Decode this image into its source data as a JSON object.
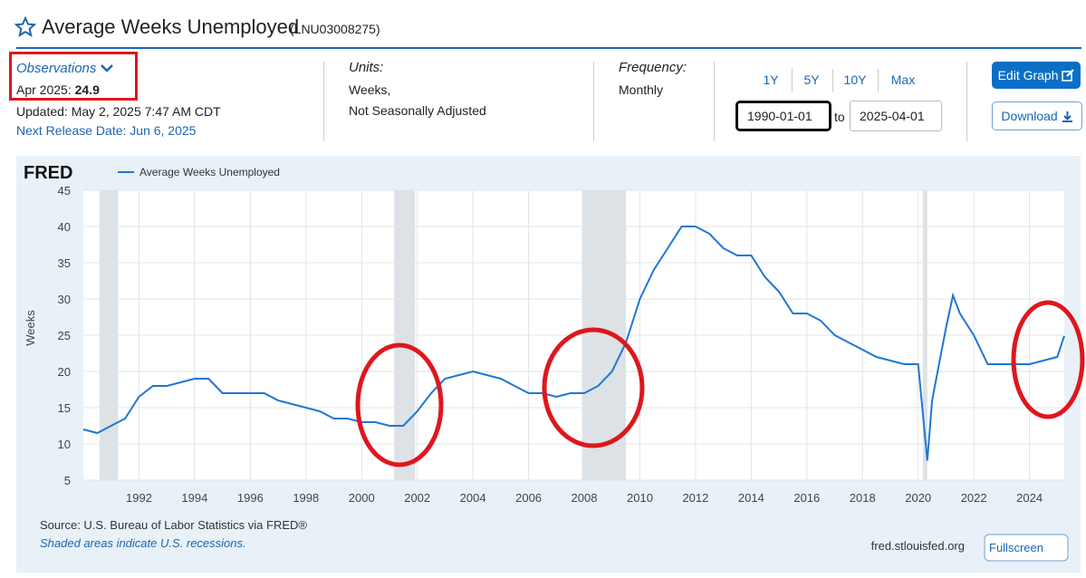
{
  "header": {
    "title": "Average Weeks Unemployed",
    "series_id": "(LNU03008275)"
  },
  "observations": {
    "label": "Observations",
    "date": "Apr 2025:",
    "value": "24.9",
    "updated": "Updated: May 2, 2025 7:47 AM CDT",
    "next_release": "Next Release Date: Jun 6, 2025"
  },
  "units": {
    "label": "Units:",
    "line1": "Weeks,",
    "line2": "Not Seasonally Adjusted"
  },
  "frequency": {
    "label": "Frequency:",
    "value": "Monthly"
  },
  "ranges": [
    "1Y",
    "5Y",
    "10Y",
    "Max"
  ],
  "date_range": {
    "start": "1990-01-01",
    "to": "to",
    "end": "2025-04-01"
  },
  "buttons": {
    "edit": "Edit Graph",
    "download": "Download",
    "fullscreen": "Fullscreen"
  },
  "chart_data": {
    "type": "line",
    "brand": "FRED",
    "ylabel": "Weeks",
    "source": "Source: U.S. Bureau of Labor Statistics via FRED®",
    "note": "Shaded areas indicate U.S. recessions.",
    "site": "fred.stlouisfed.org",
    "xlim": [
      1990,
      2025.25
    ],
    "xticks": [
      1992,
      1994,
      1996,
      1998,
      2000,
      2002,
      2004,
      2006,
      2008,
      2010,
      2012,
      2014,
      2016,
      2018,
      2020,
      2022,
      2024
    ],
    "ylim": [
      5,
      45
    ],
    "yticks": [
      5,
      10,
      15,
      20,
      25,
      30,
      35,
      40,
      45
    ],
    "grid": true,
    "recessions": [
      [
        1990.58,
        1991.25
      ],
      [
        2001.17,
        2001.92
      ],
      [
        2007.92,
        2009.5
      ],
      [
        2020.17,
        2020.33
      ]
    ],
    "x": [
      1990,
      1990.5,
      1991,
      1991.5,
      1992,
      1992.5,
      1993,
      1993.5,
      1994,
      1994.5,
      1995,
      1995.5,
      1996,
      1996.5,
      1997,
      1997.5,
      1998,
      1998.5,
      1999,
      1999.5,
      2000,
      2000.5,
      2001,
      2001.5,
      2002,
      2002.5,
      2003,
      2003.5,
      2004,
      2004.5,
      2005,
      2005.5,
      2006,
      2006.5,
      2007,
      2007.5,
      2008,
      2008.5,
      2009,
      2009.5,
      2010,
      2010.5,
      2011,
      2011.5,
      2012,
      2012.5,
      2013,
      2013.5,
      2014,
      2014.5,
      2015,
      2015.5,
      2016,
      2016.5,
      2017,
      2017.5,
      2018,
      2018.5,
      2019,
      2019.5,
      2020,
      2020.33,
      2020.5,
      2021,
      2021.25,
      2021.5,
      2022,
      2022.5,
      2023,
      2023.5,
      2024,
      2024.5,
      2025,
      2025.25
    ],
    "series": [
      {
        "name": "Average Weeks Unemployed",
        "color": "#1f77d4",
        "values": [
          12,
          11.5,
          12.5,
          13.5,
          16.5,
          18,
          18,
          18.5,
          19,
          19,
          17,
          17,
          17,
          17,
          16,
          15.5,
          15,
          14.5,
          13.5,
          13.5,
          13,
          13,
          12.5,
          12.5,
          14.5,
          17,
          19,
          19.5,
          20,
          19.5,
          19,
          18,
          17,
          17,
          16.5,
          17,
          17,
          18,
          20,
          24,
          30,
          34,
          37,
          40,
          40,
          39,
          37,
          36,
          36,
          33,
          31,
          28,
          28,
          27,
          25,
          24,
          23,
          22,
          21.5,
          21,
          21,
          7.7,
          16,
          26,
          30.5,
          28,
          25,
          21,
          21,
          21,
          21,
          21.5,
          22,
          24.9
        ]
      }
    ]
  }
}
